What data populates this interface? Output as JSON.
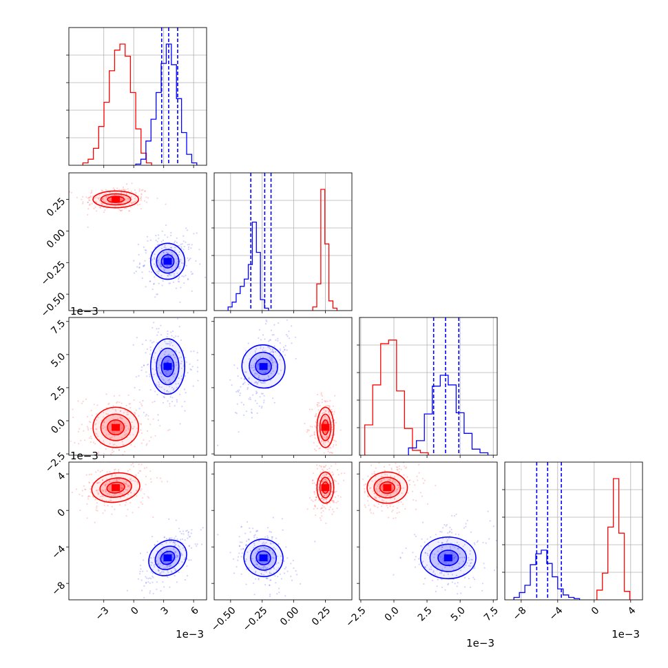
{
  "chart_data": {
    "type": "corner",
    "parameters": 4,
    "series_colors": {
      "red": "#ff0000",
      "blue": "#0000ff"
    },
    "grid": true,
    "axes": [
      {
        "range": [
          -0.0065,
          0.0073
        ],
        "ticks": [
          -3,
          0,
          3,
          6
        ],
        "tick_labels": [
          "−3",
          "0",
          "3",
          "6"
        ],
        "tick_scale": 0.001,
        "offset_label": "1e−3"
      },
      {
        "range": [
          -0.63,
          0.46
        ],
        "ticks": [
          -0.5,
          -0.25,
          0,
          0.25
        ],
        "tick_labels": [
          "−0.50",
          "−0.25",
          "0.00",
          "0.25"
        ],
        "tick_scale": 1,
        "offset_label": ""
      },
      {
        "range": [
          -0.0026,
          0.0078
        ],
        "ticks": [
          -2.5,
          0,
          2.5,
          5,
          7.5
        ],
        "tick_labels": [
          "−2.5",
          "0.0",
          "2.5",
          "5.0",
          "7.5"
        ],
        "tick_scale": 0.001,
        "offset_label": "1e−3"
      },
      {
        "range": [
          -0.0098,
          0.0053
        ],
        "ticks": [
          -8,
          -4,
          0,
          4
        ],
        "tick_labels": [
          "−8",
          "−4",
          "0",
          "4"
        ],
        "tick_scale": 0.001,
        "offset_label": "1e−3"
      }
    ],
    "marginals": [
      {
        "param": 0,
        "red": {
          "edges_from": -0.0051,
          "bin_width": 0.00053,
          "counts": [
            0.02,
            0.05,
            0.14,
            0.32,
            0.52,
            0.78,
            0.95,
            1.0,
            0.9,
            0.6,
            0.3,
            0.1,
            0.02
          ]
        },
        "blue": {
          "edges_from": 0.0002,
          "bin_width": 0.00051,
          "counts": [
            0.01,
            0.05,
            0.2,
            0.38,
            0.6,
            0.84,
            1.0,
            0.83,
            0.55,
            0.27,
            0.09,
            0.02
          ]
        },
        "quantiles": [
          0.0028,
          0.0035,
          0.0044
        ]
      },
      {
        "param": 1,
        "blue": {
          "edges_from": -0.52,
          "bin_width": 0.032,
          "counts": [
            0.03,
            0.07,
            0.14,
            0.2,
            0.26,
            0.38,
            0.73,
            0.48,
            0.09,
            0.02
          ]
        },
        "red": {
          "edges_from": 0.15,
          "bin_width": 0.032,
          "counts": [
            0.03,
            0.22,
            1.0,
            0.55,
            0.08,
            0.02
          ]
        },
        "quantiles": [
          -0.34,
          -0.23,
          -0.18
        ]
      },
      {
        "param": 2,
        "red": {
          "edges_from": -0.0022,
          "bin_width": 0.0006,
          "counts": [
            0.25,
            0.58,
            0.92,
            0.95,
            0.53,
            0.22,
            0.04,
            0.02
          ]
        },
        "blue": {
          "edges_from": 0.0011,
          "bin_width": 0.0006,
          "counts": [
            0.06,
            0.12,
            0.34,
            0.57,
            0.66,
            0.58,
            0.35,
            0.18,
            0.05,
            0.02
          ]
        },
        "quantiles": [
          0.003,
          0.0039,
          0.0049
        ]
      },
      {
        "param": 3,
        "blue": {
          "edges_from": -0.0088,
          "bin_width": 0.0006,
          "counts": [
            0.02,
            0.06,
            0.12,
            0.29,
            0.38,
            0.41,
            0.3,
            0.19,
            0.09,
            0.04,
            0.02,
            0.01
          ]
        },
        "red": {
          "edges_from": 0.0003,
          "bin_width": 0.0006,
          "counts": [
            0.08,
            0.22,
            0.6,
            1.0,
            0.55,
            0.07
          ]
        },
        "quantiles": [
          -0.0063,
          -0.0051,
          -0.0036
        ]
      }
    ],
    "clusters": {
      "red": {
        "mean": [
          -0.0018,
          0.25,
          -0.0005,
          0.0025
        ],
        "sd": [
          0.0012,
          0.035,
          0.0008,
          0.0009
        ]
      },
      "blue": {
        "mean": [
          0.0034,
          -0.24,
          0.0041,
          -0.0052
        ],
        "sd": [
          0.0009,
          0.075,
          0.0011,
          0.0012
        ]
      }
    }
  }
}
